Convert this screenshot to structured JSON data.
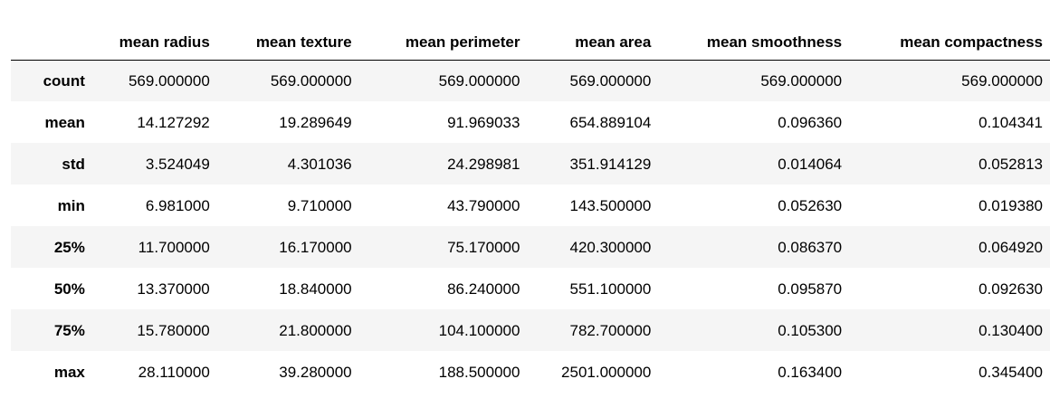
{
  "table": {
    "index_header": "",
    "columns": [
      "mean radius",
      "mean texture",
      "mean perimeter",
      "mean area",
      "mean smoothness",
      "mean compactness"
    ],
    "rows": [
      {
        "label": "count",
        "values": [
          "569.000000",
          "569.000000",
          "569.000000",
          "569.000000",
          "569.000000",
          "569.000000"
        ]
      },
      {
        "label": "mean",
        "values": [
          "14.127292",
          "19.289649",
          "91.969033",
          "654.889104",
          "0.096360",
          "0.104341"
        ]
      },
      {
        "label": "std",
        "values": [
          "3.524049",
          "4.301036",
          "24.298981",
          "351.914129",
          "0.014064",
          "0.052813"
        ]
      },
      {
        "label": "min",
        "values": [
          "6.981000",
          "9.710000",
          "43.790000",
          "143.500000",
          "0.052630",
          "0.019380"
        ]
      },
      {
        "label": "25%",
        "values": [
          "11.700000",
          "16.170000",
          "75.170000",
          "420.300000",
          "0.086370",
          "0.064920"
        ]
      },
      {
        "label": "50%",
        "values": [
          "13.370000",
          "18.840000",
          "86.240000",
          "551.100000",
          "0.095870",
          "0.092630"
        ]
      },
      {
        "label": "75%",
        "values": [
          "15.780000",
          "21.800000",
          "104.100000",
          "782.700000",
          "0.105300",
          "0.130400"
        ]
      },
      {
        "label": "max",
        "values": [
          "28.110000",
          "39.280000",
          "188.500000",
          "2501.000000",
          "0.163400",
          "0.345400"
        ]
      }
    ]
  },
  "colors": {
    "stripe": "#f5f5f5",
    "header_rule": "#000000",
    "text": "#000000"
  }
}
